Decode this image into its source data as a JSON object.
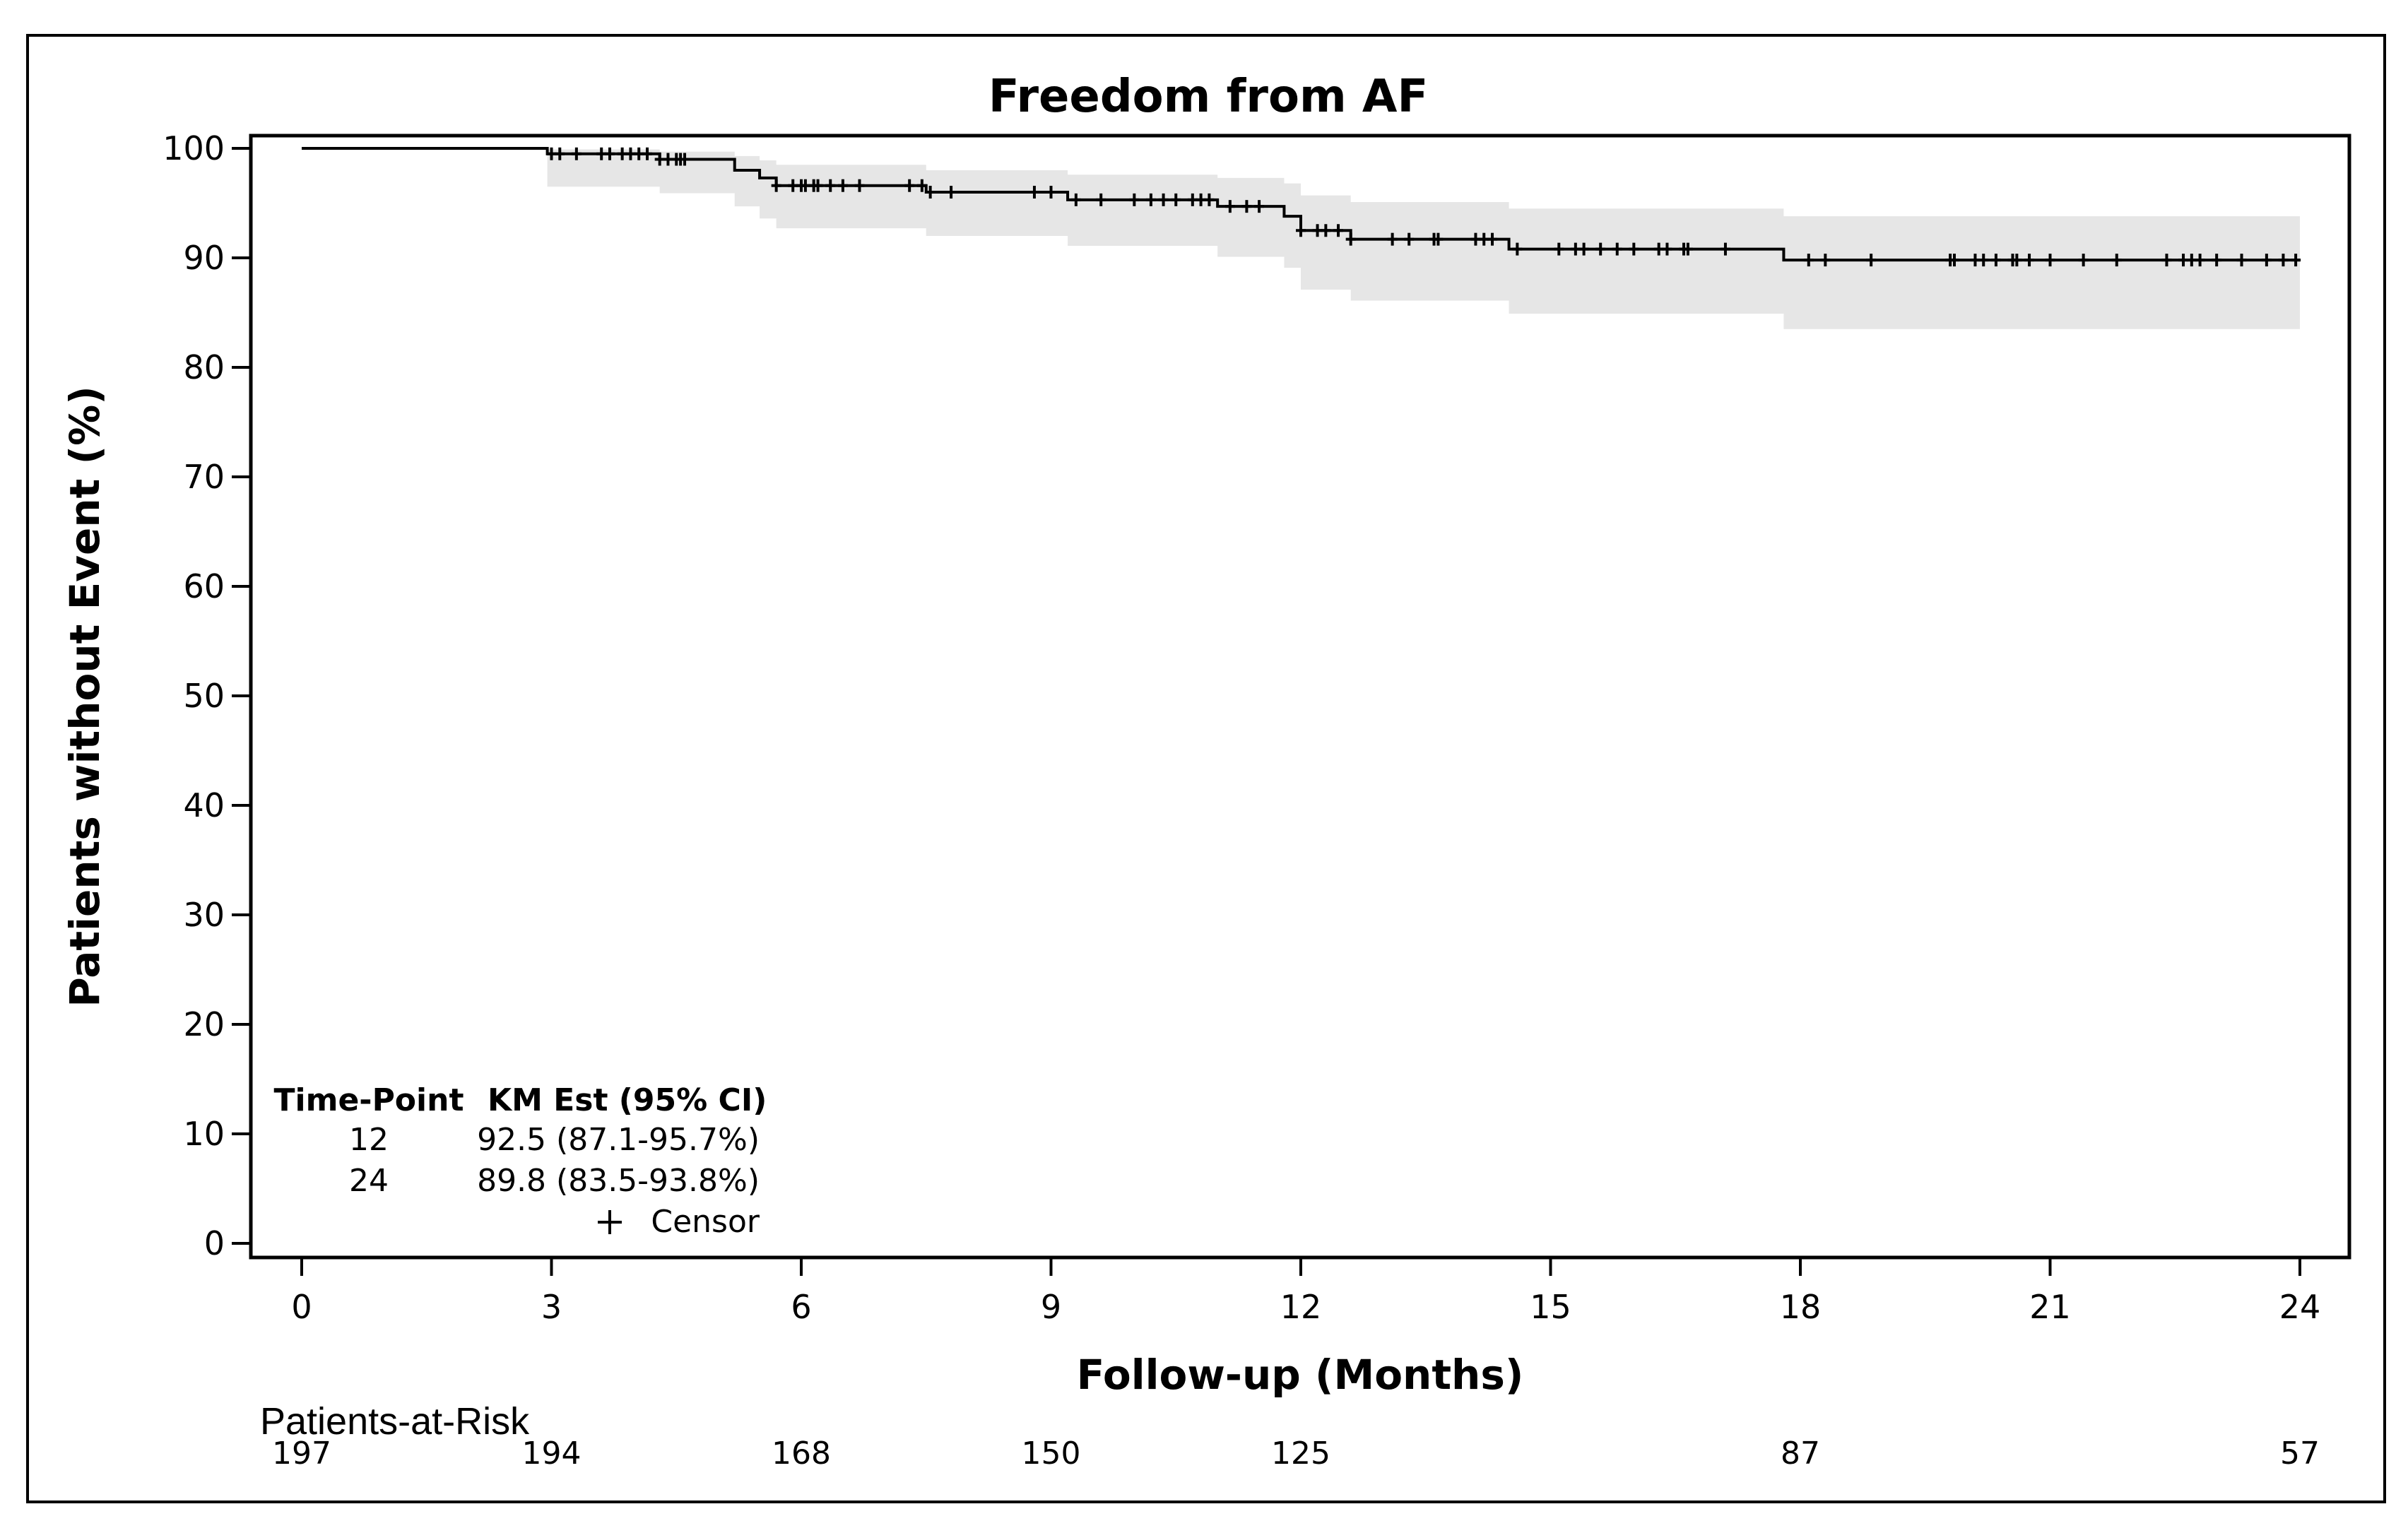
{
  "chart_data": {
    "type": "km-survival",
    "title": "Freedom from AF",
    "xlabel": "Follow-up (Months)",
    "ylabel": "Patients without Event (%)",
    "xlim": [
      0,
      24
    ],
    "ylim": [
      0,
      100
    ],
    "x_ticks": [
      "0",
      "3",
      "6",
      "9",
      "12",
      "15",
      "18",
      "21",
      "24"
    ],
    "y_ticks": [
      "0",
      "10",
      "20",
      "30",
      "40",
      "50",
      "60",
      "70",
      "80",
      "90",
      "100"
    ],
    "grid": false,
    "series": [
      {
        "steps": [
          [
            0,
            100
          ],
          [
            2.95,
            99.5
          ],
          [
            4.3,
            99.0
          ],
          [
            5.2,
            98.0
          ],
          [
            5.5,
            97.3
          ],
          [
            5.7,
            96.6
          ],
          [
            7.5,
            96.0
          ],
          [
            9.2,
            95.3
          ],
          [
            11.0,
            94.7
          ],
          [
            11.8,
            93.8
          ],
          [
            12.0,
            92.5
          ],
          [
            12.6,
            91.7
          ],
          [
            14.5,
            90.8
          ],
          [
            17.8,
            89.8
          ],
          [
            24.0,
            89.8
          ]
        ],
        "ci_band": [
          [
            0,
            100,
            100
          ],
          [
            2.95,
            96.5,
            99.9
          ],
          [
            4.3,
            95.9,
            99.7
          ],
          [
            5.2,
            94.7,
            99.3
          ],
          [
            5.5,
            93.6,
            98.9
          ],
          [
            5.7,
            92.7,
            98.5
          ],
          [
            7.5,
            92.0,
            98.0
          ],
          [
            9.2,
            91.1,
            97.6
          ],
          [
            11.0,
            90.1,
            97.3
          ],
          [
            11.8,
            89.1,
            96.8
          ],
          [
            12.0,
            87.1,
            95.7
          ],
          [
            12.6,
            86.1,
            95.1
          ],
          [
            14.5,
            84.9,
            94.5
          ],
          [
            17.8,
            83.5,
            93.8
          ],
          [
            24.0,
            83.5,
            93.8
          ]
        ],
        "censor_times": [
          3.0,
          3.1,
          3.3,
          3.6,
          3.7,
          3.85,
          3.95,
          4.05,
          4.15,
          4.3,
          4.4,
          4.5,
          4.55,
          4.6,
          5.7,
          5.9,
          6.0,
          6.05,
          6.15,
          6.2,
          6.35,
          6.5,
          6.7,
          7.3,
          7.45,
          7.55,
          7.8,
          8.8,
          9.0,
          9.3,
          9.6,
          10.0,
          10.2,
          10.35,
          10.5,
          10.7,
          10.8,
          10.9,
          11.15,
          11.35,
          11.5,
          12.0,
          12.2,
          12.3,
          12.45,
          12.6,
          13.1,
          13.3,
          13.6,
          13.65,
          14.1,
          14.2,
          14.3,
          14.6,
          15.1,
          15.3,
          15.4,
          15.6,
          15.8,
          16.0,
          16.3,
          16.4,
          16.6,
          16.65,
          17.1,
          18.1,
          18.3,
          18.85,
          19.8,
          19.85,
          20.1,
          20.2,
          20.35,
          20.55,
          20.6,
          20.75,
          21.0,
          21.4,
          21.8,
          22.4,
          22.6,
          22.7,
          22.8,
          23.0,
          23.3,
          23.6,
          23.8,
          23.95
        ]
      }
    ],
    "km_table": {
      "header_time": "Time-Point",
      "header_est": "KM Est (95% CI)",
      "rows": [
        {
          "time": "12",
          "est": "92.5 (87.1-95.7%)"
        },
        {
          "time": "24",
          "est": "89.8 (83.5-93.8%)"
        }
      ],
      "censor_label": "Censor"
    },
    "at_risk": {
      "label": "Patients-at-Risk",
      "entries": [
        {
          "x": 0,
          "count": "197"
        },
        {
          "x": 3,
          "count": "194"
        },
        {
          "x": 6,
          "count": "168"
        },
        {
          "x": 9,
          "count": "150"
        },
        {
          "x": 12,
          "count": "125"
        },
        {
          "x": 18,
          "count": "87"
        },
        {
          "x": 24,
          "count": "57"
        }
      ]
    }
  }
}
